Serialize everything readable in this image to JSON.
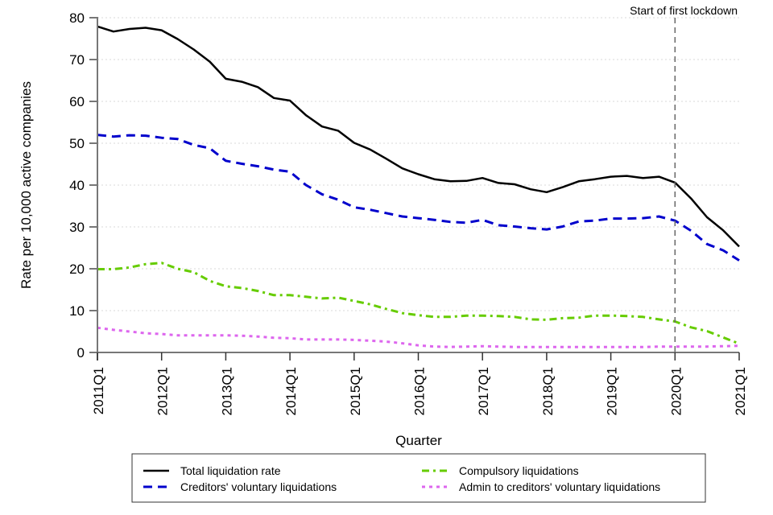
{
  "chart_data": {
    "type": "line",
    "title": "",
    "xlabel": "Quarter",
    "ylabel": "Rate per 10,000 active companies",
    "ylim": [
      0,
      80
    ],
    "yticks": [
      0,
      10,
      20,
      30,
      40,
      50,
      60,
      70,
      80
    ],
    "grid": "horizontal dotted",
    "x": [
      "2011Q1",
      "2011Q2",
      "2011Q3",
      "2011Q4",
      "2012Q1",
      "2012Q2",
      "2012Q3",
      "2012Q4",
      "2013Q1",
      "2013Q2",
      "2013Q3",
      "2013Q4",
      "2014Q1",
      "2014Q2",
      "2014Q3",
      "2014Q4",
      "2015Q1",
      "2015Q2",
      "2015Q3",
      "2015Q4",
      "2016Q1",
      "2016Q2",
      "2016Q3",
      "2016Q4",
      "2017Q1",
      "2017Q2",
      "2017Q3",
      "2017Q4",
      "2018Q1",
      "2018Q2",
      "2018Q3",
      "2018Q4",
      "2019Q1",
      "2019Q2",
      "2019Q3",
      "2019Q4",
      "2020Q1",
      "2020Q2",
      "2020Q3",
      "2020Q4",
      "2021Q1"
    ],
    "xtick_labels": [
      "2011Q1",
      "2012Q1",
      "2013Q1",
      "2014Q1",
      "2015Q1",
      "2016Q1",
      "2017Q1",
      "2018Q1",
      "2019Q1",
      "2020Q1",
      "2021Q1"
    ],
    "series": [
      {
        "name": "Total liquidation rate",
        "color": "#000000",
        "style": "solid",
        "values": [
          77.9,
          76.7,
          77.3,
          77.6,
          77.0,
          74.9,
          72.4,
          69.5,
          65.4,
          64.7,
          63.4,
          60.8,
          60.2,
          56.7,
          54.0,
          53.0,
          50.1,
          48.5,
          46.3,
          44.0,
          42.6,
          41.4,
          40.9,
          41.0,
          41.7,
          40.5,
          40.2,
          39.0,
          38.3,
          39.5,
          40.9,
          41.4,
          42.0,
          42.2,
          41.7,
          42.0,
          40.6,
          36.8,
          32.3,
          29.2,
          25.3
        ]
      },
      {
        "name": "Creditors' voluntary liquidations",
        "color": "#0000cc",
        "style": "dashed",
        "values": [
          52.0,
          51.6,
          51.9,
          51.8,
          51.3,
          51.0,
          49.6,
          48.8,
          45.8,
          45.1,
          44.5,
          43.7,
          43.2,
          40.0,
          37.8,
          36.5,
          34.7,
          34.1,
          33.3,
          32.5,
          32.1,
          31.7,
          31.2,
          31.0,
          31.7,
          30.4,
          30.1,
          29.7,
          29.4,
          30.1,
          31.3,
          31.5,
          32.0,
          32.0,
          32.1,
          32.5,
          31.5,
          29.1,
          25.9,
          24.4,
          22.0
        ]
      },
      {
        "name": "Compulsory liquidations",
        "color": "#66cc00",
        "style": "dash-dot",
        "values": [
          19.9,
          19.9,
          20.3,
          21.1,
          21.4,
          20.0,
          19.2,
          17.1,
          15.8,
          15.4,
          14.7,
          13.7,
          13.7,
          13.3,
          12.9,
          13.1,
          12.3,
          11.5,
          10.4,
          9.4,
          8.9,
          8.5,
          8.5,
          8.8,
          8.8,
          8.7,
          8.5,
          7.9,
          7.8,
          8.2,
          8.3,
          8.8,
          8.8,
          8.7,
          8.5,
          7.9,
          7.4,
          6.0,
          5.1,
          3.6,
          2.1
        ]
      },
      {
        "name": "Admin to creditors' voluntary liquidations",
        "color": "#dd66ee",
        "style": "dotted",
        "values": [
          5.9,
          5.4,
          5.0,
          4.6,
          4.4,
          4.1,
          4.1,
          4.1,
          4.1,
          4.0,
          3.8,
          3.5,
          3.4,
          3.1,
          3.1,
          3.1,
          3.0,
          2.8,
          2.6,
          2.2,
          1.7,
          1.4,
          1.3,
          1.4,
          1.5,
          1.4,
          1.3,
          1.3,
          1.3,
          1.3,
          1.3,
          1.3,
          1.3,
          1.3,
          1.3,
          1.4,
          1.4,
          1.4,
          1.4,
          1.5,
          1.6
        ]
      }
    ],
    "annotations": [
      {
        "type": "vertical-line",
        "x": "2020Q1",
        "label": "Start of first lockdown",
        "color": "#666666"
      }
    ],
    "legend": {
      "placement": "bottom",
      "columns": 2
    }
  }
}
